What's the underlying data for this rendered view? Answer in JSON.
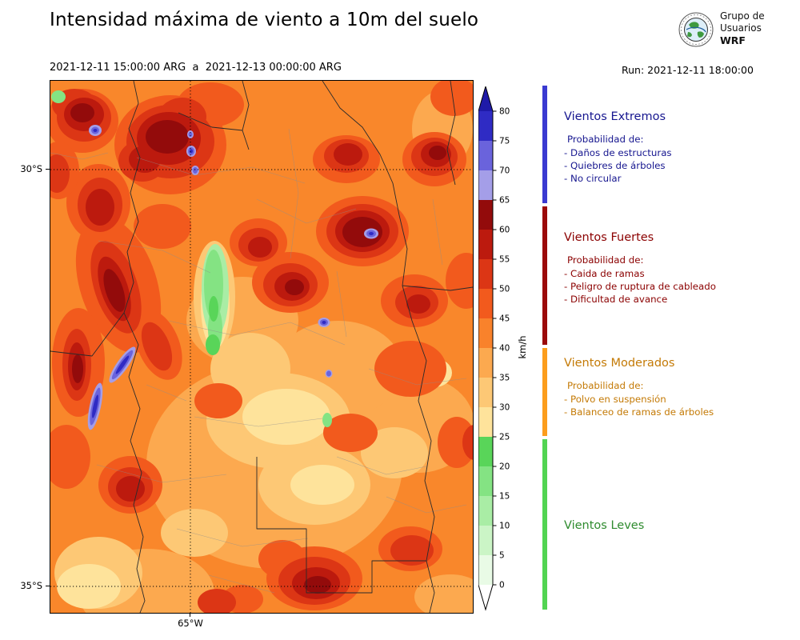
{
  "header": {
    "title": "Intensidad máxima de viento a 10m del suelo",
    "valid_range": "2021-12-11 15:00:00 ARG  a  2021-12-13 00:00:00 ARG",
    "run_label": "Run: 2021-12-11 18:00:00",
    "logo_text": {
      "line1": "Grupo de",
      "line2": "Usuarios",
      "line3": "WRF"
    }
  },
  "map_axes": {
    "lat_tick_30": "30°S",
    "lat_tick_35": "35°S",
    "lon_tick_65": "65°W"
  },
  "colorbar": {
    "unit_label": "km/h",
    "tick_labels": [
      "80",
      "75",
      "70",
      "65",
      "60",
      "55",
      "50",
      "45",
      "40",
      "35",
      "30",
      "25",
      "20",
      "15",
      "10",
      "5",
      "0"
    ],
    "segment_colors_top_to_bottom": [
      "#2F2BC4",
      "#6A63DC",
      "#A49EE8",
      "#930B0B",
      "#BC1A0E",
      "#DC3615",
      "#F25A1D",
      "#F9822B",
      "#FCA94F",
      "#FDC875",
      "#FEE39B",
      "#59D559",
      "#84E383",
      "#A9EDA5",
      "#CBF5C6",
      "#E9FBE6"
    ],
    "over_color": "#1F1AA8",
    "under_color": "#FFFFFF"
  },
  "legend": {
    "categories": [
      {
        "name": "Vientos Extremos",
        "text_color": "#16168F",
        "bar_color": "#3A3AD1",
        "prob_label": "Probabilidad de:",
        "items": [
          "- Daños de estructuras",
          "- Quiebres de árboles",
          "- No circular"
        ]
      },
      {
        "name": "Vientos Fuertes",
        "text_color": "#8B0000",
        "bar_color": "#9B0A0A",
        "prob_label": "Probabilidad de:",
        "items": [
          "- Caida de ramas",
          "- Peligro de ruptura de cableado",
          "- Dificultad de avance"
        ]
      },
      {
        "name": "Vientos Moderados",
        "text_color": "#C47A06",
        "bar_color": "#FC9D1C",
        "prob_label": "Probabilidad de:",
        "items": [
          "- Polvo en suspensión",
          "- Balanceo de ramas de árboles"
        ]
      },
      {
        "name": "Vientos Leves",
        "text_color": "#2E8B2E",
        "bar_color": "#52D452",
        "prob_label": "",
        "items": []
      }
    ]
  },
  "chart_data": {
    "type": "heatmap",
    "title": "Intensidad máxima de viento a 10m del suelo",
    "valid_from": "2021-12-11 15:00:00 ARG",
    "valid_to": "2021-12-13 00:00:00 ARG",
    "model_run": "2021-12-11 18:00:00",
    "units": "km/h",
    "colorbar_ticks": [
      0,
      5,
      10,
      15,
      20,
      25,
      30,
      35,
      40,
      45,
      50,
      55,
      60,
      65,
      70,
      75,
      80
    ],
    "colorbar_range": [
      0,
      80
    ],
    "colorbar_extended_above_max": true,
    "lat_gridlines_deg": [
      -30,
      -35
    ],
    "lon_gridlines_deg": [
      -65
    ],
    "lat_gridline_labels": [
      "30°S",
      "35°S"
    ],
    "lon_gridline_labels": [
      "65°W"
    ],
    "wind_categories": [
      {
        "name": "Vientos Leves",
        "range_kmh": [
          0,
          25
        ],
        "color_family": "green"
      },
      {
        "name": "Vientos Moderados",
        "range_kmh": [
          25,
          40
        ],
        "color_family": "orange"
      },
      {
        "name": "Vientos Fuertes",
        "range_kmh": [
          40,
          65
        ],
        "color_family": "red"
      },
      {
        "name": "Vientos Extremos",
        "range_kmh": [
          65,
          80
        ],
        "color_family": "blue-violet"
      }
    ],
    "field_summary": "Filled-contour map: most of the region shows 35-55 km/h (orange-red), dark-red cores of 55-65 km/h in the north, northwest band and scattered cells; small blue-violet spots exceed 65 km/h; pale-green pockets of 10-25 km/h along a central valley; yellow 25-35 km/h areas in the center-south and southwest corner."
  }
}
